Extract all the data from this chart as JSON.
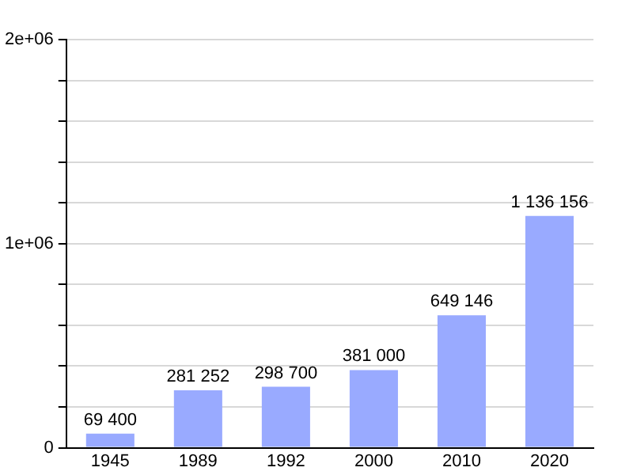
{
  "chart_data": {
    "type": "bar",
    "categories": [
      "1945",
      "1989",
      "1992",
      "2000",
      "2010",
      "2020"
    ],
    "values": [
      69400,
      281252,
      298700,
      381000,
      649146,
      1136156
    ],
    "value_labels": [
      "69 400",
      "281 252",
      "298 700",
      "381 000",
      "649 146",
      "1 136 156"
    ],
    "color": "#99aaff",
    "ylim": [
      0,
      2000000
    ],
    "yticks": [
      {
        "value": 0,
        "label": "0"
      },
      {
        "value": 200000,
        "label": null
      },
      {
        "value": 400000,
        "label": null
      },
      {
        "value": 600000,
        "label": null
      },
      {
        "value": 800000,
        "label": null
      },
      {
        "value": 1000000,
        "label": "1e+06"
      },
      {
        "value": 1200000,
        "label": null
      },
      {
        "value": 1400000,
        "label": null
      },
      {
        "value": 1600000,
        "label": null
      },
      {
        "value": 1800000,
        "label": null
      },
      {
        "value": 2000000,
        "label": "2e+06"
      }
    ],
    "grid": "y",
    "legend": false
  }
}
